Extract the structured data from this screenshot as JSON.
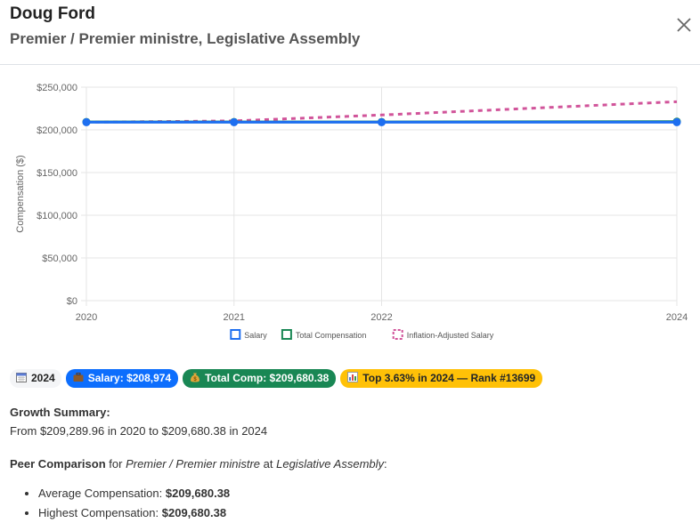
{
  "header": {
    "name": "Doug Ford",
    "title": "Premier / Premier ministre, Legislative Assembly"
  },
  "chart_data": {
    "type": "line",
    "x": [
      "2020",
      "2021",
      "2022",
      "2024"
    ],
    "x_years": [
      2020,
      2021,
      2022,
      2024
    ],
    "xlim": [
      2020,
      2024
    ],
    "x_ticks": [
      "2020",
      "2021",
      "2022",
      "2024"
    ],
    "ylabel": "Compensation ($)",
    "ylim": [
      0,
      250000
    ],
    "y_ticks": [
      "$0",
      "$50,000",
      "$100,000",
      "$150,000",
      "$200,000",
      "$250,000"
    ],
    "grid": true,
    "legend_position": "bottom",
    "series": [
      {
        "name": "Salary",
        "color": "#1e6ff0",
        "style": "solid",
        "values": [
          208974,
          208974,
          208974,
          208974
        ]
      },
      {
        "name": "Total Compensation",
        "color": "#198754",
        "style": "solid",
        "values": [
          209289.96,
          209289.96,
          209289.96,
          209680.38
        ]
      },
      {
        "name": "Inflation-Adjusted Salary",
        "color": "#d1549a",
        "style": "dashed",
        "values": [
          208974,
          210500,
          217400,
          233000
        ]
      }
    ]
  },
  "badges": {
    "year": "2024",
    "salary": "Salary: $208,974",
    "total": "Total Comp: $209,680.38",
    "rank": "Top 3.63% in 2024 — Rank #13699"
  },
  "growth": {
    "heading": "Growth Summary:",
    "text": "From $209,289.96 in 2020 to $209,680.38 in 2024"
  },
  "peer": {
    "heading": "Peer Comparison",
    "for_text": " for ",
    "role": "Premier / Premier ministre",
    "at_text": " at ",
    "org": "Legislative Assembly",
    "colon": ":",
    "items": [
      {
        "label": "Average Compensation: ",
        "value": "$209,680.38"
      },
      {
        "label": "Highest Compensation: ",
        "value": "$209,680.38"
      }
    ]
  }
}
